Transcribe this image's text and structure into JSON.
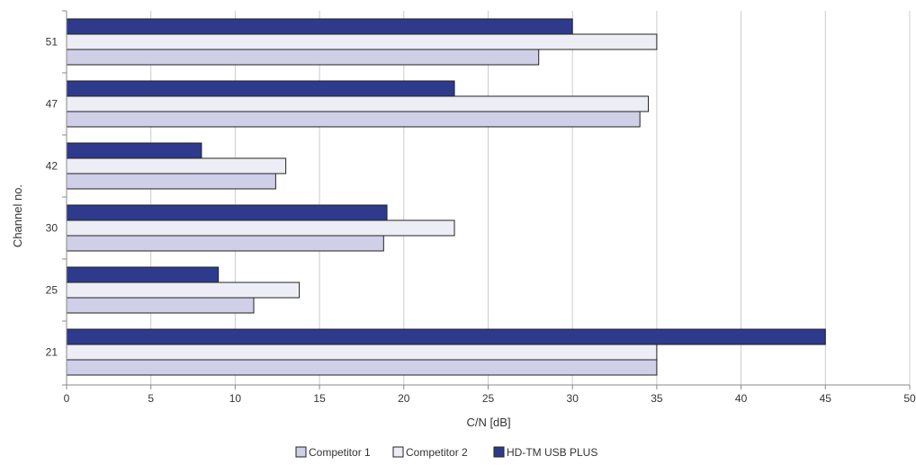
{
  "chart_data": {
    "type": "bar",
    "orientation": "horizontal",
    "title": "",
    "xlabel": "C/N [dB]",
    "ylabel": "Channel no.",
    "xlim": [
      0,
      50
    ],
    "xticks": [
      0,
      5,
      10,
      15,
      20,
      25,
      30,
      35,
      40,
      45,
      50
    ],
    "grid": true,
    "legend_position": "bottom",
    "categories": [
      "51",
      "47",
      "42",
      "30",
      "25",
      "21"
    ],
    "series": [
      {
        "name": "HD-TM USB PLUS",
        "color": "#2e3a8c",
        "values": [
          30,
          23,
          8,
          19,
          9,
          45
        ]
      },
      {
        "name": "Competitor 2",
        "color": "#ededf6",
        "values": [
          35,
          34.5,
          13,
          23,
          13.8,
          35
        ]
      },
      {
        "name": "Competitor 1",
        "color": "#cfcfe8",
        "values": [
          28,
          34,
          12.4,
          18.8,
          11.1,
          35
        ]
      }
    ],
    "legend_order": [
      "Competitor 1",
      "Competitor 2",
      "HD-TM USB PLUS"
    ]
  }
}
